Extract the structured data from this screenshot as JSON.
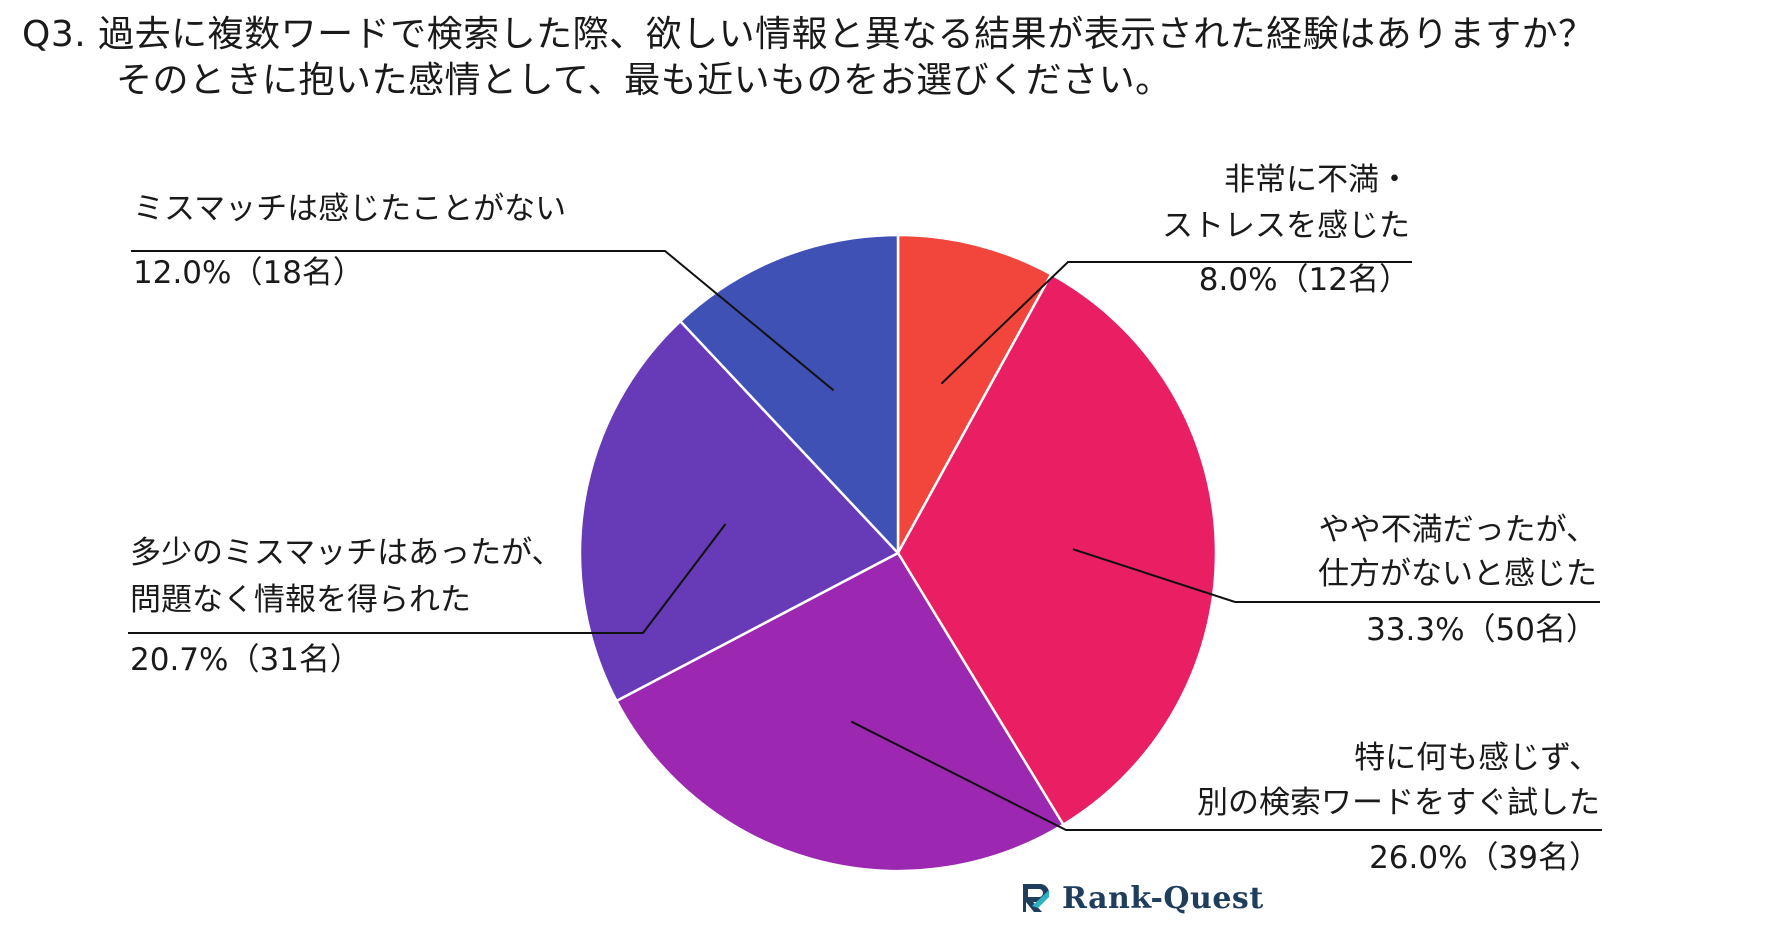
{
  "title": {
    "line1": "Q3. 過去に複数ワードで検索した際、欲しい情報と異なる結果が表示された経験はありますか？",
    "line2": "そのときに抱いた感情として、最も近いものをお選びください。"
  },
  "logo": {
    "text": "Rank-Quest",
    "icon": "rank-quest-logo-icon"
  },
  "chart_data": {
    "type": "pie",
    "start": "12 o'clock",
    "direction": "clockwise",
    "slices": [
      {
        "label_lines": [
          "非常に不満・",
          "ストレスを感じた"
        ],
        "value": 8.0,
        "count": 12,
        "value_text": "8.0%（12名）",
        "color": "#f2453b"
      },
      {
        "label_lines": [
          "やや不満だったが、",
          "仕方がないと感じた"
        ],
        "value": 33.3,
        "count": 50,
        "value_text": "33.3%（50名）",
        "color": "#e91e63"
      },
      {
        "label_lines": [
          "特に何も感じず、",
          "別の検索ワードをすぐ試した"
        ],
        "value": 26.0,
        "count": 39,
        "value_text": "26.0%（39名）",
        "color": "#9c27b0"
      },
      {
        "label_lines": [
          "多少のミスマッチはあったが、",
          "問題なく情報を得られた"
        ],
        "value": 20.7,
        "count": 31,
        "value_text": "20.7%（31名）",
        "color": "#673ab7"
      },
      {
        "label_lines": [
          "ミスマッチは感じたことがない"
        ],
        "value": 12.0,
        "count": 18,
        "value_text": "12.0%（18名）",
        "color": "#3f51b5"
      }
    ]
  }
}
